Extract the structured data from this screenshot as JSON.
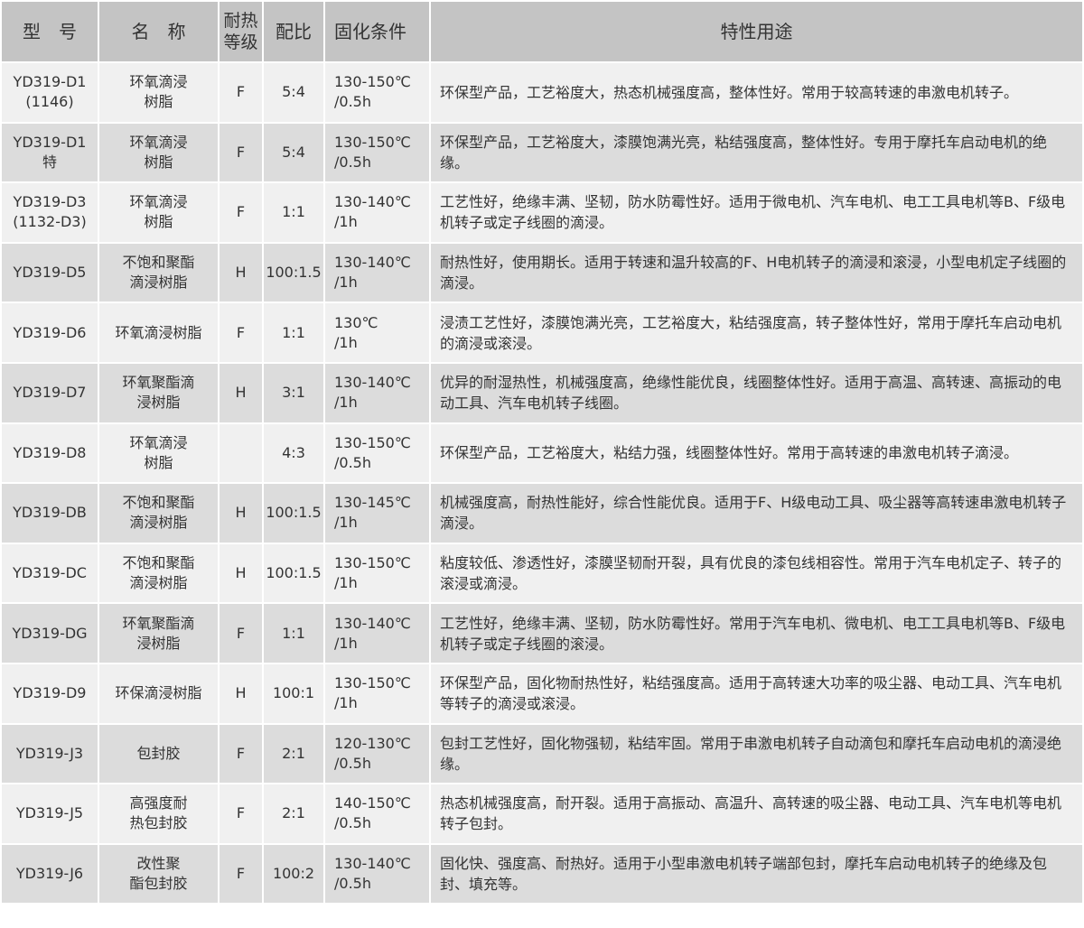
{
  "header": {
    "model": "型　号",
    "name": "名　称",
    "heat_class": "耐热\n等级",
    "ratio": "配比",
    "cure": "固化条件",
    "usage": "特性用途"
  },
  "rows": [
    {
      "model": "YD319-D1\n(1146)",
      "name": "环氧滴浸\n树脂",
      "heat_class": "F",
      "ratio": "5:4",
      "cure": "130-150℃\n/0.5h",
      "usage": "环保型产品，工艺裕度大，热态机械强度高，整体性好。常用于较高转速的串激电机转子。"
    },
    {
      "model": "YD319-D1\n特",
      "name": "环氧滴浸\n树脂",
      "heat_class": "F",
      "ratio": "5:4",
      "cure": "130-150℃\n/0.5h",
      "usage": "环保型产品，工艺裕度大，漆膜饱满光亮，粘结强度高，整体性好。专用于摩托车启动电机的绝缘。"
    },
    {
      "model": "YD319-D3\n(1132-D3)",
      "name": "环氧滴浸\n树脂",
      "heat_class": "F",
      "ratio": "1:1",
      "cure": "130-140℃\n/1h",
      "usage": "工艺性好，绝缘丰满、坚韧，防水防霉性好。适用于微电机、汽车电机、电工工具电机等B、F级电机转子或定子线圈的滴浸。"
    },
    {
      "model": "YD319-D5",
      "name": "不饱和聚酯\n滴浸树脂",
      "heat_class": "H",
      "ratio": "100:1.5",
      "cure": "130-140℃\n/1h",
      "usage": "耐热性好，使用期长。适用于转速和温升较高的F、H电机转子的滴浸和滚浸，小型电机定子线圈的滴浸。"
    },
    {
      "model": "YD319-D6",
      "name": "环氧滴浸树脂",
      "heat_class": "F",
      "ratio": "1:1",
      "cure": "130℃\n/1h",
      "usage": "浸渍工艺性好，漆膜饱满光亮，工艺裕度大，粘结强度高，转子整体性好，常用于摩托车启动电机的滴浸或滚浸。"
    },
    {
      "model": "YD319-D7",
      "name": "环氧聚酯滴\n浸树脂",
      "heat_class": "H",
      "ratio": "3:1",
      "cure": "130-140℃\n/1h",
      "usage": "优异的耐湿热性，机械强度高，绝缘性能优良，线圈整体性好。适用于高温、高转速、高振动的电动工具、汽车电机转子线圈。"
    },
    {
      "model": "YD319-D8",
      "name": "环氧滴浸\n树脂",
      "heat_class": "",
      "ratio": "4:3",
      "cure": "130-150℃\n/0.5h",
      "usage": "环保型产品，工艺裕度大，粘结力强，线圈整体性好。常用于高转速的串激电机转子滴浸。"
    },
    {
      "model": "YD319-DB",
      "name": "不饱和聚酯\n滴浸树脂",
      "heat_class": "H",
      "ratio": "100:1.5",
      "cure": "130-145℃\n/1h",
      "usage": "机械强度高，耐热性能好，综合性能优良。适用于F、H级电动工具、吸尘器等高转速串激电机转子滴浸。"
    },
    {
      "model": "YD319-DC",
      "name": "不饱和聚酯\n滴浸树脂",
      "heat_class": "H",
      "ratio": "100:1.5",
      "cure": "130-150℃\n/1h",
      "usage": "粘度较低、渗透性好，漆膜坚韧耐开裂，具有优良的漆包线相容性。常用于汽车电机定子、转子的滚浸或滴浸。"
    },
    {
      "model": "YD319-DG",
      "name": "环氧聚酯滴\n浸树脂",
      "heat_class": "F",
      "ratio": "1:1",
      "cure": "130-140℃\n/1h",
      "usage": "工艺性好，绝缘丰满、坚韧，防水防霉性好。常用于汽车电机、微电机、电工工具电机等B、F级电机转子或定子线圈的滚浸。"
    },
    {
      "model": "YD319-D9",
      "name": "环保滴浸树脂",
      "heat_class": "H",
      "ratio": "100:1",
      "cure": "130-150℃\n/1h",
      "usage": "环保型产品，固化物耐热性好，粘结强度高。适用于高转速大功率的吸尘器、电动工具、汽车电机等转子的滴浸或滚浸。"
    },
    {
      "model": "YD319-J3",
      "name": "包封胶",
      "heat_class": "F",
      "ratio": "2:1",
      "cure": "120-130℃\n/0.5h",
      "usage": "包封工艺性好，固化物强韧，粘结牢固。常用于串激电机转子自动滴包和摩托车启动电机的滴浸绝缘。"
    },
    {
      "model": "YD319-J5",
      "name": "高强度耐\n热包封胶",
      "heat_class": "F",
      "ratio": "2:1",
      "cure": "140-150℃\n/0.5h",
      "usage": "热态机械强度高，耐开裂。适用于高振动、高温升、高转速的吸尘器、电动工具、汽车电机等电机转子包封。"
    },
    {
      "model": "YD319-J6",
      "name": "改性聚\n酯包封胶",
      "heat_class": "F",
      "ratio": "100:2",
      "cure": "130-140℃\n/0.5h",
      "usage": "固化快、强度高、耐热好。适用于小型串激电机转子端部包封，摩托车启动电机转子的绝缘及包封、填充等。"
    }
  ]
}
